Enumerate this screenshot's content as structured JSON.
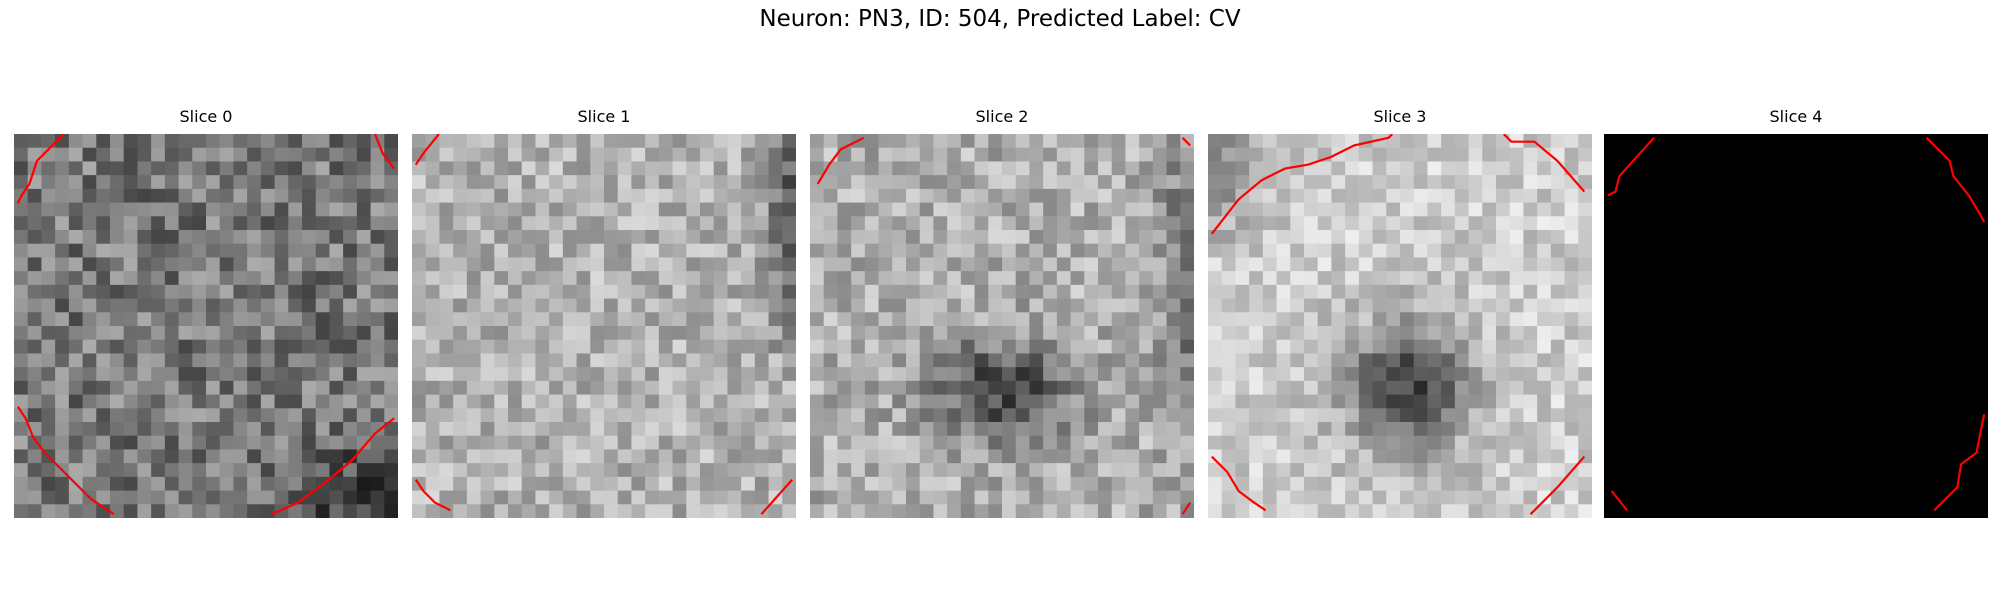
{
  "figure": {
    "title": "Neuron: PN3, ID: 504, Predicted Label: CV"
  },
  "colors": {
    "contour": "#ff0000",
    "background": "#ffffff",
    "black_slice": "#000000"
  },
  "grid": {
    "cells": 28
  },
  "panels": [
    {
      "title": "Slice 0",
      "base": 120,
      "blob": null,
      "noise": 52,
      "seed": 11,
      "dark_corner": "bottom-right",
      "contours": [
        [
          [
            0.13,
            0.0
          ],
          [
            0.06,
            0.07
          ],
          [
            0.04,
            0.13
          ],
          [
            0.02,
            0.16
          ],
          [
            0.01,
            0.18
          ]
        ],
        [
          [
            0.94,
            0.0
          ],
          [
            0.96,
            0.05
          ],
          [
            0.99,
            0.09
          ]
        ],
        [
          [
            0.01,
            0.71
          ],
          [
            0.03,
            0.74
          ],
          [
            0.05,
            0.79
          ],
          [
            0.08,
            0.83
          ],
          [
            0.13,
            0.88
          ],
          [
            0.2,
            0.95
          ],
          [
            0.26,
            0.99
          ]
        ],
        [
          [
            0.67,
            0.99
          ],
          [
            0.74,
            0.96
          ],
          [
            0.82,
            0.9
          ],
          [
            0.88,
            0.85
          ],
          [
            0.94,
            0.78
          ],
          [
            0.99,
            0.74
          ]
        ]
      ]
    },
    {
      "title": "Slice 1",
      "base": 178,
      "blob": null,
      "noise": 40,
      "seed": 23,
      "dark_corner": "top-right",
      "contours": [
        [
          [
            0.07,
            0.0
          ],
          [
            0.03,
            0.05
          ],
          [
            0.01,
            0.08
          ]
        ],
        [
          [
            0.01,
            0.9
          ],
          [
            0.03,
            0.93
          ],
          [
            0.06,
            0.96
          ],
          [
            0.1,
            0.98
          ]
        ],
        [
          [
            0.91,
            0.99
          ],
          [
            0.99,
            0.9
          ]
        ]
      ]
    },
    {
      "title": "Slice 2",
      "base": 175,
      "blob": [
        0.5,
        0.67,
        0.18,
        0.13,
        110
      ],
      "noise": 42,
      "seed": 37,
      "dark_corner": "right",
      "contours": [
        [
          [
            0.14,
            0.01
          ],
          [
            0.08,
            0.04
          ],
          [
            0.05,
            0.08
          ],
          [
            0.02,
            0.13
          ]
        ],
        [
          [
            0.97,
            0.01
          ],
          [
            0.99,
            0.03
          ]
        ],
        [
          [
            0.97,
            0.99
          ],
          [
            0.99,
            0.96
          ]
        ]
      ]
    },
    {
      "title": "Slice 3",
      "base": 205,
      "blob": [
        0.52,
        0.66,
        0.16,
        0.17,
        140
      ],
      "noise": 34,
      "seed": 53,
      "dark_corner": "top-left",
      "contours": [
        [
          [
            0.01,
            0.26
          ],
          [
            0.08,
            0.17
          ],
          [
            0.14,
            0.12
          ],
          [
            0.2,
            0.09
          ],
          [
            0.26,
            0.08
          ],
          [
            0.32,
            0.06
          ],
          [
            0.38,
            0.03
          ],
          [
            0.47,
            0.01
          ],
          [
            0.48,
            0.0
          ]
        ],
        [
          [
            0.77,
            0.0
          ],
          [
            0.79,
            0.02
          ],
          [
            0.85,
            0.02
          ],
          [
            0.91,
            0.07
          ],
          [
            0.98,
            0.15
          ]
        ],
        [
          [
            0.01,
            0.84
          ],
          [
            0.05,
            0.88
          ],
          [
            0.08,
            0.93
          ],
          [
            0.12,
            0.96
          ],
          [
            0.15,
            0.98
          ]
        ],
        [
          [
            0.84,
            0.99
          ],
          [
            0.91,
            0.92
          ],
          [
            0.98,
            0.84
          ]
        ]
      ]
    },
    {
      "title": "Slice 4",
      "base": 0,
      "blob": null,
      "noise": 0,
      "seed": 0,
      "dark_corner": null,
      "contours": [
        [
          [
            0.13,
            0.01
          ],
          [
            0.04,
            0.11
          ],
          [
            0.03,
            0.15
          ],
          [
            0.01,
            0.16
          ]
        ],
        [
          [
            0.84,
            0.01
          ],
          [
            0.9,
            0.07
          ],
          [
            0.91,
            0.11
          ],
          [
            0.95,
            0.16
          ],
          [
            0.98,
            0.21
          ],
          [
            0.99,
            0.23
          ]
        ],
        [
          [
            0.02,
            0.93
          ],
          [
            0.06,
            0.98
          ]
        ],
        [
          [
            0.86,
            0.98
          ],
          [
            0.92,
            0.92
          ],
          [
            0.93,
            0.86
          ],
          [
            0.97,
            0.83
          ],
          [
            0.98,
            0.78
          ],
          [
            0.99,
            0.73
          ]
        ]
      ]
    }
  ]
}
